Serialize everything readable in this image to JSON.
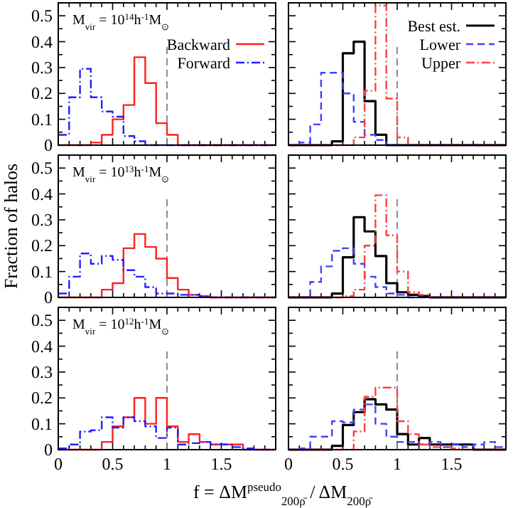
{
  "chart_data": [
    {
      "type": "histogram",
      "annotations": [
        "M$_{vir}$ = 10$^{14}$h$^{-1}$M$_{⊙}$"
      ],
      "bins": [
        0,
        0.1,
        0.2,
        0.3,
        0.4,
        0.5,
        0.6,
        0.7,
        0.8,
        0.9,
        1,
        1.1,
        1.2,
        1.3,
        1.4,
        1.5,
        1.6,
        1.7,
        1.8,
        1.9,
        2
      ],
      "xlim": [
        0,
        2
      ],
      "ylim": [
        0,
        0.55
      ],
      "xticks": [
        0,
        {
          "value": 0.1,
          "label": null
        },
        {
          "value": 0.2,
          "label": null
        },
        {
          "value": 0.3,
          "label": null
        },
        {
          "value": 0.4,
          "label": null
        },
        0.5,
        {
          "value": 0.6,
          "label": null
        },
        {
          "value": 0.7,
          "label": null
        },
        {
          "value": 0.8,
          "label": null
        },
        {
          "value": 0.9,
          "label": null
        },
        1,
        {
          "value": 1.1,
          "label": null
        },
        {
          "value": 1.2,
          "label": null
        },
        {
          "value": 1.3,
          "label": null
        },
        {
          "value": 1.4,
          "label": null
        },
        1.5,
        {
          "value": 1.6,
          "label": null
        },
        {
          "value": 1.7,
          "label": null
        },
        {
          "value": 1.8,
          "label": null
        },
        {
          "value": 1.9,
          "label": null
        }
      ],
      "yticks": [
        0,
        {
          "value": 0.05,
          "label": null
        },
        0.1,
        {
          "value": 0.15,
          "label": null
        },
        0.2,
        {
          "value": 0.25,
          "label": null
        },
        0.3,
        {
          "value": 0.35,
          "label": null
        },
        0.4,
        {
          "value": 0.45,
          "label": null
        },
        0.5
      ],
      "tick_labels": "y",
      "legend": "top right",
      "ref_lines": [
        {
          "axis": "x",
          "value": 1,
          "color": "#808080",
          "line_style": "dashed"
        }
      ],
      "series": [
        {
          "name": "Backward",
          "color": "#ff2020",
          "line_style": "solid",
          "values": [
            0,
            0,
            0,
            0.01,
            0.04,
            0.1,
            0.155,
            0.34,
            0.24,
            0.085,
            0.04,
            0,
            0,
            0,
            0,
            0,
            0,
            0,
            0,
            0
          ]
        },
        {
          "name": "Forward",
          "color": "#2020ff",
          "line_style": "dashdot",
          "values": [
            0.04,
            0.185,
            0.295,
            0.185,
            0.13,
            0.11,
            0.035,
            0.015,
            0,
            0,
            0,
            0,
            0,
            0,
            0,
            0,
            0,
            0,
            0,
            0
          ]
        }
      ]
    },
    {
      "type": "histogram",
      "bins": [
        0,
        0.1,
        0.2,
        0.3,
        0.4,
        0.5,
        0.6,
        0.7,
        0.8,
        0.9,
        1,
        1.1,
        1.2,
        1.3,
        1.4,
        1.5,
        1.6,
        1.7,
        1.8,
        1.9,
        2
      ],
      "xlim": [
        0,
        2
      ],
      "ylim": [
        0,
        0.55
      ],
      "xticks": [
        0,
        {
          "value": 0.1,
          "label": null
        },
        {
          "value": 0.2,
          "label": null
        },
        {
          "value": 0.3,
          "label": null
        },
        {
          "value": 0.4,
          "label": null
        },
        0.5,
        {
          "value": 0.6,
          "label": null
        },
        {
          "value": 0.7,
          "label": null
        },
        {
          "value": 0.8,
          "label": null
        },
        {
          "value": 0.9,
          "label": null
        },
        1,
        {
          "value": 1.1,
          "label": null
        },
        {
          "value": 1.2,
          "label": null
        },
        {
          "value": 1.3,
          "label": null
        },
        {
          "value": 1.4,
          "label": null
        },
        1.5,
        {
          "value": 1.6,
          "label": null
        },
        {
          "value": 1.7,
          "label": null
        },
        {
          "value": 1.8,
          "label": null
        },
        {
          "value": 1.9,
          "label": null
        }
      ],
      "yticks": [
        0,
        {
          "value": 0.05,
          "label": null
        },
        0.1,
        {
          "value": 0.15,
          "label": null
        },
        0.2,
        {
          "value": 0.25,
          "label": null
        },
        0.3,
        {
          "value": 0.35,
          "label": null
        },
        0.4,
        {
          "value": 0.45,
          "label": null
        },
        0.5
      ],
      "tick_labels": false,
      "legend": "top right",
      "ref_lines": [
        {
          "axis": "x",
          "value": 1,
          "color": "#808080",
          "line_style": "dashed"
        }
      ],
      "series": [
        {
          "name": "Best est.",
          "color": "#000000",
          "line_style": "solid",
          "values": [
            0,
            0,
            0,
            0,
            0.015,
            0.355,
            0.4,
            0.17,
            0.04,
            0,
            0,
            0,
            0,
            0,
            0,
            0,
            0,
            0,
            0,
            0
          ]
        },
        {
          "name": "Lower",
          "color": "#4040ff",
          "line_style": "dashed",
          "values": [
            0,
            0.01,
            0.08,
            0.28,
            0.28,
            0.2,
            0.09,
            0.04,
            0.02,
            0,
            0,
            0,
            0,
            0,
            0,
            0,
            0,
            0,
            0,
            0
          ]
        },
        {
          "name": "Upper",
          "color": "#ff4040",
          "line_style": "dashdot",
          "values": [
            0,
            0,
            0,
            0,
            0,
            0,
            0.03,
            0.21,
            0.54,
            0.18,
            0.03,
            0,
            0,
            0,
            0,
            0,
            0,
            0,
            0,
            0
          ]
        }
      ]
    },
    {
      "type": "histogram",
      "ylabel": "Fraction of halos",
      "annotations": [
        "M$_{vir}$ = 10$^{13}$h$^{-1}$M$_{⊙}$"
      ],
      "bins": [
        0,
        0.1,
        0.2,
        0.3,
        0.4,
        0.5,
        0.6,
        0.7,
        0.8,
        0.9,
        1,
        1.1,
        1.2,
        1.3,
        1.4,
        1.5,
        1.6,
        1.7,
        1.8,
        1.9,
        2
      ],
      "xlim": [
        0,
        2
      ],
      "ylim": [
        0,
        0.55
      ],
      "xticks": [
        0,
        {
          "value": 0.1,
          "label": null
        },
        {
          "value": 0.2,
          "label": null
        },
        {
          "value": 0.3,
          "label": null
        },
        {
          "value": 0.4,
          "label": null
        },
        0.5,
        {
          "value": 0.6,
          "label": null
        },
        {
          "value": 0.7,
          "label": null
        },
        {
          "value": 0.8,
          "label": null
        },
        {
          "value": 0.9,
          "label": null
        },
        1,
        {
          "value": 1.1,
          "label": null
        },
        {
          "value": 1.2,
          "label": null
        },
        {
          "value": 1.3,
          "label": null
        },
        {
          "value": 1.4,
          "label": null
        },
        1.5,
        {
          "value": 1.6,
          "label": null
        },
        {
          "value": 1.7,
          "label": null
        },
        {
          "value": 1.8,
          "label": null
        },
        {
          "value": 1.9,
          "label": null
        }
      ],
      "yticks": [
        0,
        {
          "value": 0.05,
          "label": null
        },
        0.1,
        {
          "value": 0.15,
          "label": null
        },
        0.2,
        {
          "value": 0.25,
          "label": null
        },
        0.3,
        {
          "value": 0.35,
          "label": null
        },
        0.4,
        {
          "value": 0.45,
          "label": null
        },
        0.5
      ],
      "tick_labels": "y",
      "ref_lines": [
        {
          "axis": "x",
          "value": 1,
          "color": "#808080",
          "line_style": "dashed"
        }
      ],
      "series": [
        {
          "color": "#ff2020",
          "line_style": "solid",
          "values": [
            0,
            0,
            0,
            0,
            0.03,
            0.055,
            0.19,
            0.245,
            0.195,
            0.15,
            0.075,
            0.03,
            0.01,
            0.005,
            0,
            0,
            0,
            0,
            0,
            0
          ]
        },
        {
          "color": "#2020ff",
          "line_style": "dashdot",
          "values": [
            0.015,
            0.08,
            0.17,
            0.13,
            0.16,
            0.145,
            0.105,
            0.08,
            0.04,
            0.015,
            0.015,
            0.01,
            0.01,
            0.005,
            0,
            0,
            0,
            0,
            0,
            0
          ]
        }
      ]
    },
    {
      "type": "histogram",
      "bins": [
        0,
        0.1,
        0.2,
        0.3,
        0.4,
        0.5,
        0.6,
        0.7,
        0.8,
        0.9,
        1,
        1.1,
        1.2,
        1.3,
        1.4,
        1.5,
        1.6,
        1.7,
        1.8,
        1.9,
        2
      ],
      "xlim": [
        0,
        2
      ],
      "ylim": [
        0,
        0.55
      ],
      "xticks": [
        0,
        {
          "value": 0.1,
          "label": null
        },
        {
          "value": 0.2,
          "label": null
        },
        {
          "value": 0.3,
          "label": null
        },
        {
          "value": 0.4,
          "label": null
        },
        0.5,
        {
          "value": 0.6,
          "label": null
        },
        {
          "value": 0.7,
          "label": null
        },
        {
          "value": 0.8,
          "label": null
        },
        {
          "value": 0.9,
          "label": null
        },
        1,
        {
          "value": 1.1,
          "label": null
        },
        {
          "value": 1.2,
          "label": null
        },
        {
          "value": 1.3,
          "label": null
        },
        {
          "value": 1.4,
          "label": null
        },
        1.5,
        {
          "value": 1.6,
          "label": null
        },
        {
          "value": 1.7,
          "label": null
        },
        {
          "value": 1.8,
          "label": null
        },
        {
          "value": 1.9,
          "label": null
        }
      ],
      "yticks": [
        0,
        {
          "value": 0.05,
          "label": null
        },
        0.1,
        {
          "value": 0.15,
          "label": null
        },
        0.2,
        {
          "value": 0.25,
          "label": null
        },
        0.3,
        {
          "value": 0.35,
          "label": null
        },
        0.4,
        {
          "value": 0.45,
          "label": null
        },
        0.5
      ],
      "tick_labels": false,
      "ref_lines": [
        {
          "axis": "x",
          "value": 1,
          "color": "#808080",
          "line_style": "dashed"
        }
      ],
      "series": [
        {
          "color": "#000000",
          "line_style": "solid",
          "values": [
            0,
            0,
            0,
            0,
            0.015,
            0.155,
            0.31,
            0.255,
            0.16,
            0.055,
            0.02,
            0.01,
            0.005,
            0,
            0,
            0,
            0,
            0,
            0,
            0
          ]
        },
        {
          "color": "#4040ff",
          "line_style": "dashed",
          "values": [
            0,
            0,
            0.06,
            0.12,
            0.18,
            0.19,
            0.13,
            0.08,
            0.04,
            0.015,
            0.01,
            0,
            0,
            0,
            0,
            0,
            0,
            0,
            0,
            0
          ]
        },
        {
          "color": "#ff4040",
          "line_style": "dashdot",
          "values": [
            0,
            0,
            0,
            0,
            0,
            0.005,
            0.03,
            0.2,
            0.395,
            0.24,
            0.1,
            0.02,
            0.01,
            0,
            0,
            0,
            0,
            0,
            0,
            0
          ]
        }
      ]
    },
    {
      "type": "histogram",
      "xlabel": "f = ΔM$^{pseudo}$$_{200ρ̄}$ / ΔM$_{200ρ̄}$",
      "annotations": [
        "M$_{vir}$ = 10$^{12}$h$^{-1}$M$_{⊙}$"
      ],
      "bins": [
        0,
        0.1,
        0.2,
        0.3,
        0.4,
        0.5,
        0.6,
        0.7,
        0.8,
        0.9,
        1,
        1.1,
        1.2,
        1.3,
        1.4,
        1.5,
        1.6,
        1.7,
        1.8,
        1.9,
        2
      ],
      "xlim": [
        0,
        2
      ],
      "ylim": [
        0,
        0.55
      ],
      "xticks": [
        0,
        {
          "value": 0.1,
          "label": null
        },
        {
          "value": 0.2,
          "label": null
        },
        {
          "value": 0.3,
          "label": null
        },
        {
          "value": 0.4,
          "label": null
        },
        0.5,
        {
          "value": 0.6,
          "label": null
        },
        {
          "value": 0.7,
          "label": null
        },
        {
          "value": 0.8,
          "label": null
        },
        {
          "value": 0.9,
          "label": null
        },
        1,
        {
          "value": 1.1,
          "label": null
        },
        {
          "value": 1.2,
          "label": null
        },
        {
          "value": 1.3,
          "label": null
        },
        {
          "value": 1.4,
          "label": null
        },
        1.5,
        {
          "value": 1.6,
          "label": null
        },
        {
          "value": 1.7,
          "label": null
        },
        {
          "value": 1.8,
          "label": null
        },
        {
          "value": 1.9,
          "label": null
        }
      ],
      "yticks": [
        0,
        {
          "value": 0.05,
          "label": null
        },
        0.1,
        {
          "value": 0.15,
          "label": null
        },
        0.2,
        {
          "value": 0.25,
          "label": null
        },
        0.3,
        {
          "value": 0.35,
          "label": null
        },
        0.4,
        {
          "value": 0.45,
          "label": null
        },
        0.5
      ],
      "ref_lines": [
        {
          "axis": "x",
          "value": 1,
          "color": "#808080",
          "line_style": "dashed"
        }
      ],
      "series": [
        {
          "color": "#ff2020",
          "line_style": "solid",
          "values": [
            0,
            0,
            0,
            0,
            0.03,
            0.09,
            0.125,
            0.2,
            0.1,
            0.2,
            0.09,
            0.03,
            0.06,
            0.03,
            0.02,
            0.02,
            0.02,
            0,
            0,
            0
          ]
        },
        {
          "color": "#2020ff",
          "line_style": "dashdot",
          "values": [
            0.005,
            0.02,
            0.07,
            0.075,
            0.125,
            0.085,
            0.125,
            0.11,
            0.09,
            0.045,
            0.085,
            0.02,
            0.025,
            0.03,
            0.02,
            0.02,
            0.01,
            0.005,
            0,
            0
          ]
        }
      ]
    },
    {
      "type": "histogram",
      "bins": [
        0,
        0.1,
        0.2,
        0.3,
        0.4,
        0.5,
        0.6,
        0.7,
        0.8,
        0.9,
        1,
        1.1,
        1.2,
        1.3,
        1.4,
        1.5,
        1.6,
        1.7,
        1.8,
        1.9,
        2
      ],
      "xlim": [
        0,
        2
      ],
      "ylim": [
        0,
        0.55
      ],
      "xticks": [
        0,
        {
          "value": 0.1,
          "label": null
        },
        {
          "value": 0.2,
          "label": null
        },
        {
          "value": 0.3,
          "label": null
        },
        {
          "value": 0.4,
          "label": null
        },
        0.5,
        {
          "value": 0.6,
          "label": null
        },
        {
          "value": 0.7,
          "label": null
        },
        {
          "value": 0.8,
          "label": null
        },
        {
          "value": 0.9,
          "label": null
        },
        1,
        {
          "value": 1.1,
          "label": null
        },
        {
          "value": 1.2,
          "label": null
        },
        {
          "value": 1.3,
          "label": null
        },
        {
          "value": 1.4,
          "label": null
        },
        1.5,
        {
          "value": 1.6,
          "label": null
        },
        {
          "value": 1.7,
          "label": null
        },
        {
          "value": 1.8,
          "label": null
        },
        {
          "value": 1.9,
          "label": null
        }
      ],
      "yticks": [
        0,
        {
          "value": 0.05,
          "label": null
        },
        0.1,
        {
          "value": 0.15,
          "label": null
        },
        0.2,
        {
          "value": 0.25,
          "label": null
        },
        0.3,
        {
          "value": 0.35,
          "label": null
        },
        0.4,
        {
          "value": 0.45,
          "label": null
        },
        0.5
      ],
      "tick_labels": "x",
      "ref_lines": [
        {
          "axis": "x",
          "value": 1,
          "color": "#808080",
          "line_style": "dashed"
        }
      ],
      "series": [
        {
          "color": "#000000",
          "line_style": "solid",
          "values": [
            0,
            0,
            0,
            0,
            0.015,
            0.095,
            0.145,
            0.195,
            0.175,
            0.155,
            0.06,
            0.02,
            0.045,
            0.02,
            0.02,
            0.02,
            0.02,
            0,
            0,
            0
          ]
        },
        {
          "color": "#4040ff",
          "line_style": "dashed",
          "values": [
            0,
            0.005,
            0.05,
            0.05,
            0.11,
            0.105,
            0.155,
            0.175,
            0.1,
            0.05,
            0.03,
            0.03,
            0.02,
            0.03,
            0.01,
            0.02,
            0.01,
            0.02,
            0.03,
            0.01
          ]
        },
        {
          "color": "#ff4040",
          "line_style": "dashdot",
          "values": [
            0,
            0,
            0,
            0,
            0,
            0,
            0.07,
            0.205,
            0.24,
            0.24,
            0.11,
            0.06,
            0.02,
            0.01,
            0.01,
            0.005,
            0,
            0,
            0,
            0
          ]
        }
      ]
    }
  ]
}
